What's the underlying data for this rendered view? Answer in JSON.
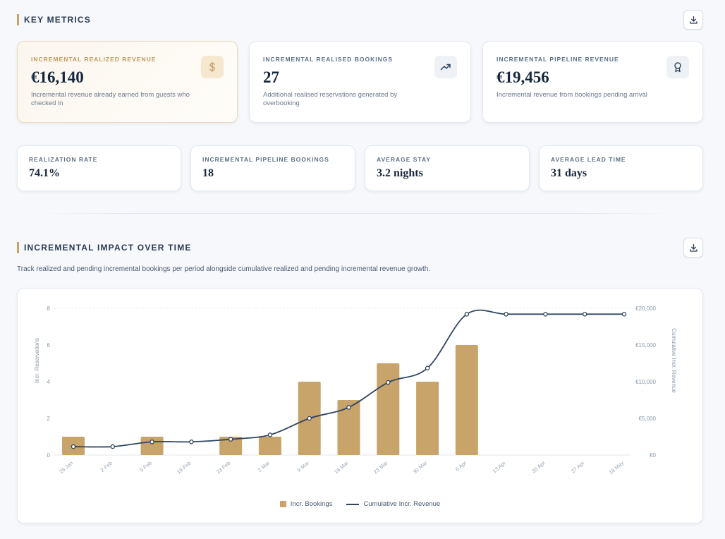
{
  "key_metrics": {
    "title": "KEY METRICS",
    "cards": [
      {
        "label": "INCREMENTAL REALIZED REVENUE",
        "value": "€16,140",
        "desc": "Incremental revenue already earned from guests who checked in",
        "icon": "dollar-icon"
      },
      {
        "label": "INCREMENTAL REALISED BOOKINGS",
        "value": "27",
        "desc": "Additional realised reservations generated by overbooking",
        "icon": "trending-up-icon"
      },
      {
        "label": "INCREMENTAL PIPELINE REVENUE",
        "value": "€19,456",
        "desc": "Incremental revenue from bookings pending arrival",
        "icon": "award-icon"
      }
    ],
    "mini_cards": [
      {
        "label": "REALIZATION RATE",
        "value": "74.1%"
      },
      {
        "label": "INCREMENTAL PIPELINE BOOKINGS",
        "value": "18"
      },
      {
        "label": "AVERAGE STAY",
        "value": "3.2 nights"
      },
      {
        "label": "AVERAGE LEAD TIME",
        "value": "31 days"
      }
    ]
  },
  "impact": {
    "title": "INCREMENTAL IMPACT OVER TIME",
    "subtitle": "Track realized and pending incremental bookings per period alongside cumulative realized and pending incremental revenue growth."
  },
  "colors": {
    "accent": "#c8a36a",
    "line": "#2f4560"
  },
  "chart_data": {
    "type": "bar",
    "categories": [
      "26 Jan",
      "2 Feb",
      "9 Feb",
      "16 Feb",
      "23 Feb",
      "2 Mar",
      "9 Mar",
      "16 Mar",
      "23 Mar",
      "30 Mar",
      "6 Apr",
      "13 Apr",
      "20 Apr",
      "27 Apr",
      "18 May"
    ],
    "series": [
      {
        "name": "Incr. Bookings",
        "type": "bar",
        "axis": "left",
        "values": [
          1,
          0,
          1,
          0,
          1,
          1,
          4,
          3,
          5,
          4,
          6,
          0,
          0,
          0,
          0
        ]
      },
      {
        "name": "Cumulative Incr. Revenue",
        "type": "line",
        "axis": "right",
        "values": [
          1150,
          1150,
          1800,
          1800,
          2150,
          2750,
          5000,
          6500,
          9900,
          11850,
          19200,
          19200,
          19200,
          19200,
          19200
        ]
      }
    ],
    "ylabel": "Incr. Reservations",
    "y2label": "Cumulative Incr. Revenue",
    "ylim": [
      0,
      8
    ],
    "y2lim": [
      0,
      20000
    ],
    "yticks": [
      "0",
      "2",
      "4",
      "6",
      "8"
    ],
    "y2ticks": [
      "€0",
      "€5,000",
      "€10,000",
      "€15,000",
      "€20,000"
    ],
    "legend": "bottom-center",
    "grid": false
  }
}
